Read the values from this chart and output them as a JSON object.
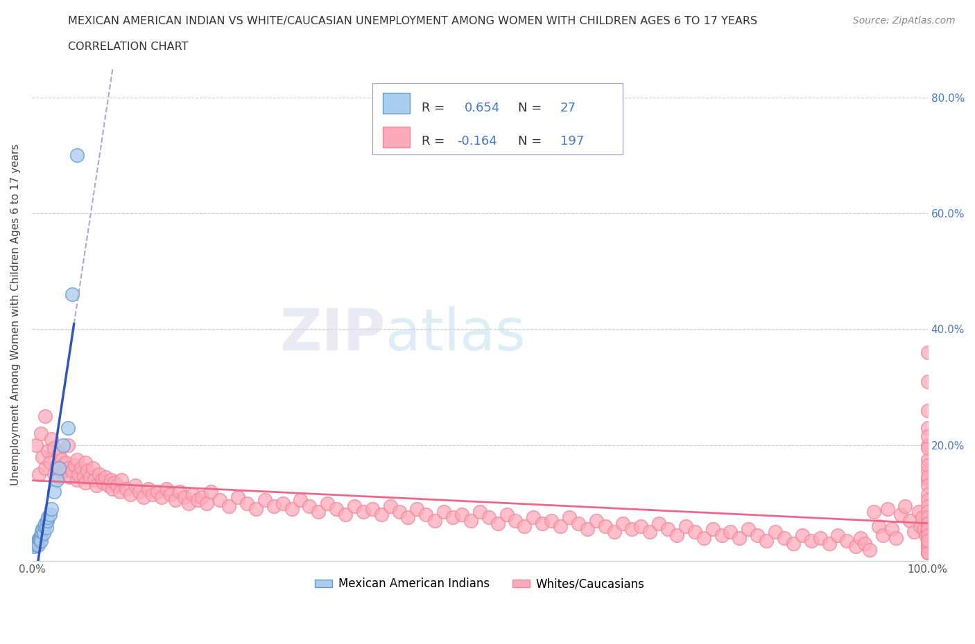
{
  "title_line1": "MEXICAN AMERICAN INDIAN VS WHITE/CAUCASIAN UNEMPLOYMENT AMONG WOMEN WITH CHILDREN AGES 6 TO 17 YEARS",
  "title_line2": "CORRELATION CHART",
  "source": "Source: ZipAtlas.com",
  "ylabel": "Unemployment Among Women with Children Ages 6 to 17 years",
  "xlim": [
    0.0,
    1.0
  ],
  "ylim": [
    0.0,
    0.85
  ],
  "blue_fill": "#aaccee",
  "blue_edge": "#6699cc",
  "pink_fill": "#ffaabb",
  "pink_edge": "#ee8899",
  "blue_line_color": "#3355bb",
  "pink_line_color": "#ee6688",
  "dash_color": "#aaaacc",
  "grid_color": "#cccccc",
  "tick_color": "#4477cc",
  "legend_label1": "Mexican American Indians",
  "legend_label2": "Whites/Caucasians",
  "blue_x": [
    0.003,
    0.004,
    0.005,
    0.006,
    0.007,
    0.007,
    0.008,
    0.009,
    0.01,
    0.01,
    0.011,
    0.012,
    0.013,
    0.014,
    0.015,
    0.016,
    0.017,
    0.018,
    0.02,
    0.022,
    0.025,
    0.028,
    0.03,
    0.035,
    0.04,
    0.045,
    0.05
  ],
  "blue_y": [
    0.025,
    0.03,
    0.028,
    0.032,
    0.035,
    0.028,
    0.038,
    0.04,
    0.045,
    0.035,
    0.05,
    0.055,
    0.048,
    0.06,
    0.065,
    0.058,
    0.07,
    0.075,
    0.08,
    0.09,
    0.12,
    0.14,
    0.16,
    0.2,
    0.23,
    0.46,
    0.7
  ],
  "pink_x": [
    0.005,
    0.008,
    0.01,
    0.012,
    0.015,
    0.015,
    0.018,
    0.02,
    0.022,
    0.025,
    0.025,
    0.028,
    0.03,
    0.03,
    0.033,
    0.035,
    0.038,
    0.04,
    0.04,
    0.042,
    0.045,
    0.048,
    0.05,
    0.05,
    0.052,
    0.055,
    0.058,
    0.06,
    0.06,
    0.062,
    0.065,
    0.068,
    0.07,
    0.072,
    0.075,
    0.078,
    0.08,
    0.082,
    0.085,
    0.088,
    0.09,
    0.092,
    0.095,
    0.098,
    0.1,
    0.105,
    0.11,
    0.115,
    0.12,
    0.125,
    0.13,
    0.135,
    0.14,
    0.145,
    0.15,
    0.155,
    0.16,
    0.165,
    0.17,
    0.175,
    0.18,
    0.185,
    0.19,
    0.195,
    0.2,
    0.21,
    0.22,
    0.23,
    0.24,
    0.25,
    0.26,
    0.27,
    0.28,
    0.29,
    0.3,
    0.31,
    0.32,
    0.33,
    0.34,
    0.35,
    0.36,
    0.37,
    0.38,
    0.39,
    0.4,
    0.41,
    0.42,
    0.43,
    0.44,
    0.45,
    0.46,
    0.47,
    0.48,
    0.49,
    0.5,
    0.51,
    0.52,
    0.53,
    0.54,
    0.55,
    0.56,
    0.57,
    0.58,
    0.59,
    0.6,
    0.61,
    0.62,
    0.63,
    0.64,
    0.65,
    0.66,
    0.67,
    0.68,
    0.69,
    0.7,
    0.71,
    0.72,
    0.73,
    0.74,
    0.75,
    0.76,
    0.77,
    0.78,
    0.79,
    0.8,
    0.81,
    0.82,
    0.83,
    0.84,
    0.85,
    0.86,
    0.87,
    0.88,
    0.89,
    0.9,
    0.91,
    0.92,
    0.925,
    0.93,
    0.935,
    0.94,
    0.945,
    0.95,
    0.955,
    0.96,
    0.965,
    0.97,
    0.975,
    0.98,
    0.985,
    0.99,
    0.992,
    0.994,
    0.996,
    0.998,
    1.0,
    1.0,
    1.0,
    1.0,
    1.0,
    1.0,
    1.0,
    1.0,
    1.0,
    1.0,
    1.0,
    1.0,
    1.0,
    1.0,
    1.0,
    1.0,
    1.0,
    1.0,
    1.0,
    1.0,
    1.0,
    1.0,
    1.0,
    1.0,
    1.0,
    1.0,
    1.0,
    1.0,
    1.0,
    1.0,
    1.0,
    1.0,
    1.0,
    1.0,
    1.0,
    1.0,
    1.0,
    1.0,
    1.0,
    1.0,
    1.0,
    1.0
  ],
  "pink_y": [
    0.2,
    0.15,
    0.22,
    0.18,
    0.16,
    0.25,
    0.19,
    0.17,
    0.21,
    0.15,
    0.195,
    0.165,
    0.145,
    0.185,
    0.175,
    0.155,
    0.17,
    0.16,
    0.2,
    0.145,
    0.155,
    0.165,
    0.14,
    0.175,
    0.15,
    0.16,
    0.145,
    0.17,
    0.135,
    0.155,
    0.145,
    0.16,
    0.14,
    0.13,
    0.15,
    0.14,
    0.135,
    0.145,
    0.13,
    0.14,
    0.125,
    0.135,
    0.13,
    0.12,
    0.14,
    0.125,
    0.115,
    0.13,
    0.12,
    0.11,
    0.125,
    0.115,
    0.12,
    0.11,
    0.125,
    0.115,
    0.105,
    0.12,
    0.11,
    0.1,
    0.115,
    0.105,
    0.11,
    0.1,
    0.12,
    0.105,
    0.095,
    0.11,
    0.1,
    0.09,
    0.105,
    0.095,
    0.1,
    0.09,
    0.105,
    0.095,
    0.085,
    0.1,
    0.09,
    0.08,
    0.095,
    0.085,
    0.09,
    0.08,
    0.095,
    0.085,
    0.075,
    0.09,
    0.08,
    0.07,
    0.085,
    0.075,
    0.08,
    0.07,
    0.085,
    0.075,
    0.065,
    0.08,
    0.07,
    0.06,
    0.075,
    0.065,
    0.07,
    0.06,
    0.075,
    0.065,
    0.055,
    0.07,
    0.06,
    0.05,
    0.065,
    0.055,
    0.06,
    0.05,
    0.065,
    0.055,
    0.045,
    0.06,
    0.05,
    0.04,
    0.055,
    0.045,
    0.05,
    0.04,
    0.055,
    0.045,
    0.035,
    0.05,
    0.04,
    0.03,
    0.045,
    0.035,
    0.04,
    0.03,
    0.045,
    0.035,
    0.025,
    0.04,
    0.03,
    0.02,
    0.085,
    0.06,
    0.045,
    0.09,
    0.055,
    0.04,
    0.08,
    0.095,
    0.07,
    0.05,
    0.085,
    0.06,
    0.075,
    0.055,
    0.045,
    0.065,
    0.05,
    0.04,
    0.055,
    0.045,
    0.36,
    0.31,
    0.26,
    0.23,
    0.2,
    0.175,
    0.155,
    0.14,
    0.195,
    0.215,
    0.165,
    0.145,
    0.13,
    0.115,
    0.105,
    0.095,
    0.085,
    0.075,
    0.065,
    0.055,
    0.045,
    0.035,
    0.025,
    0.015,
    0.055,
    0.045,
    0.035,
    0.025,
    0.015,
    0.055,
    0.045,
    0.035,
    0.025,
    0.015,
    0.055,
    0.045,
    0.035
  ]
}
